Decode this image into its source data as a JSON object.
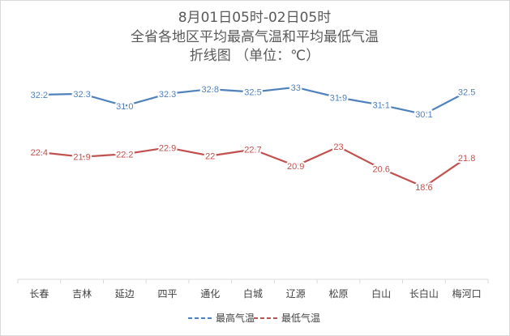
{
  "chart_data": {
    "type": "line",
    "title_lines": [
      "8月01日05时-02日05时",
      "全省各地区平均最高气温和平均最低气温",
      "折线图 （单位：℃）"
    ],
    "categories": [
      "长春",
      "吉林",
      "延边",
      "四平",
      "通化",
      "白城",
      "辽源",
      "松原",
      "白山",
      "长白山",
      "梅河口"
    ],
    "series": [
      {
        "name": "最高气温",
        "color": "#4f81bd",
        "values": [
          32.2,
          32.3,
          31.0,
          32.3,
          32.8,
          32.5,
          33,
          31.9,
          31.1,
          30.1,
          32.5
        ],
        "labels": [
          "32.2",
          "32.3",
          "31.0",
          "32.3",
          "32.8",
          "32.5",
          "33",
          "31.9",
          "31.1",
          "30.1",
          "32.5"
        ]
      },
      {
        "name": "最低气温",
        "color": "#c0504d",
        "values": [
          22.4,
          21.9,
          22.2,
          22.9,
          22,
          22.7,
          20.9,
          23,
          20.6,
          18.6,
          21.8
        ],
        "labels": [
          "22.4",
          "21.9",
          "22.2",
          "22.9",
          "22",
          "22.7",
          "20.9",
          "23",
          "20.6",
          "18.6",
          "21.8"
        ]
      }
    ],
    "grid": false,
    "legend_position": "bottom",
    "legend_style": "dashed"
  }
}
